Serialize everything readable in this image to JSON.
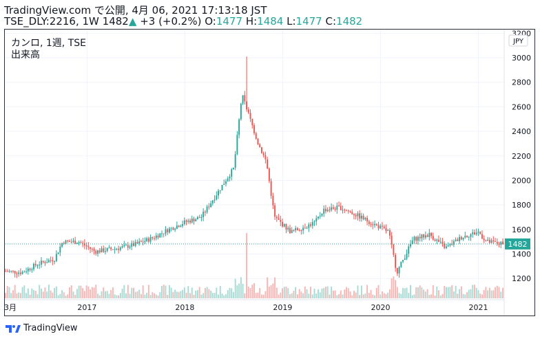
{
  "header": {
    "line1": "TradingView.com で公開, 4月 06, 2021 17:13:18 JST",
    "symbol": "TSE_DLY:2216, 1W",
    "last": "1482",
    "change_arrow": "▲",
    "change": "+3 (+0.2%)",
    "o_label": "O:",
    "o": "1477",
    "h_label": "H:",
    "h": "1484",
    "l_label": "L:",
    "l": "1477",
    "c_label": "C:",
    "c": "1482"
  },
  "legend": {
    "title": "カンロ, 1週, TSE",
    "volume": "出来高"
  },
  "axis": {
    "currency": "JPY",
    "last_price_label": "1482",
    "y_ticks": [
      "3200",
      "3000",
      "2800",
      "2600",
      "2400",
      "2200",
      "2000",
      "1800",
      "1600",
      "1400",
      "1200"
    ],
    "x_ticks": [
      "3月",
      "2017",
      "2018",
      "2019",
      "2020",
      "2021"
    ]
  },
  "footer": {
    "brand": "TradingView"
  },
  "colors": {
    "up": "#26a69a",
    "down": "#ef5350",
    "vol_up": "#a7dbd4",
    "vol_down": "#f7b6b4"
  },
  "chart_data": {
    "type": "candlestick",
    "interval": "1W",
    "y_unit": "JPY",
    "ylim": [
      1050,
      3230
    ],
    "x_range": [
      "2016-03",
      "2021-04"
    ],
    "close_path": [
      {
        "x": "2016-03",
        "y": 1260
      },
      {
        "x": "2016-05",
        "y": 1250
      },
      {
        "x": "2016-07",
        "y": 1320
      },
      {
        "x": "2016-09",
        "y": 1360
      },
      {
        "x": "2016-10",
        "y": 1500
      },
      {
        "x": "2016-12",
        "y": 1500
      },
      {
        "x": "2017-02",
        "y": 1420
      },
      {
        "x": "2017-05",
        "y": 1450
      },
      {
        "x": "2017-07",
        "y": 1480
      },
      {
        "x": "2017-09",
        "y": 1530
      },
      {
        "x": "2017-11",
        "y": 1600
      },
      {
        "x": "2018-01",
        "y": 1660
      },
      {
        "x": "2018-03",
        "y": 1700
      },
      {
        "x": "2018-05",
        "y": 1900
      },
      {
        "x": "2018-06",
        "y": 2000
      },
      {
        "x": "2018-07",
        "y": 2100
      },
      {
        "x": "2018-08",
        "y": 2700
      },
      {
        "x": "2018-09",
        "y": 2500
      },
      {
        "x": "2018-10",
        "y": 2300
      },
      {
        "x": "2018-11",
        "y": 2150
      },
      {
        "x": "2018-12",
        "y": 1700
      },
      {
        "x": "2019-02",
        "y": 1580
      },
      {
        "x": "2019-04",
        "y": 1630
      },
      {
        "x": "2019-05",
        "y": 1660
      },
      {
        "x": "2019-06",
        "y": 1760
      },
      {
        "x": "2019-08",
        "y": 1780
      },
      {
        "x": "2019-10",
        "y": 1720
      },
      {
        "x": "2019-12",
        "y": 1650
      },
      {
        "x": "2020-02",
        "y": 1580
      },
      {
        "x": "2020-03",
        "y": 1250
      },
      {
        "x": "2020-05",
        "y": 1520
      },
      {
        "x": "2020-07",
        "y": 1560
      },
      {
        "x": "2020-09",
        "y": 1450
      },
      {
        "x": "2020-11",
        "y": 1540
      },
      {
        "x": "2021-01",
        "y": 1580
      },
      {
        "x": "2021-02",
        "y": 1500
      },
      {
        "x": "2021-04",
        "y": 1482
      }
    ],
    "peak_high": 3010,
    "last_close": 1482
  }
}
